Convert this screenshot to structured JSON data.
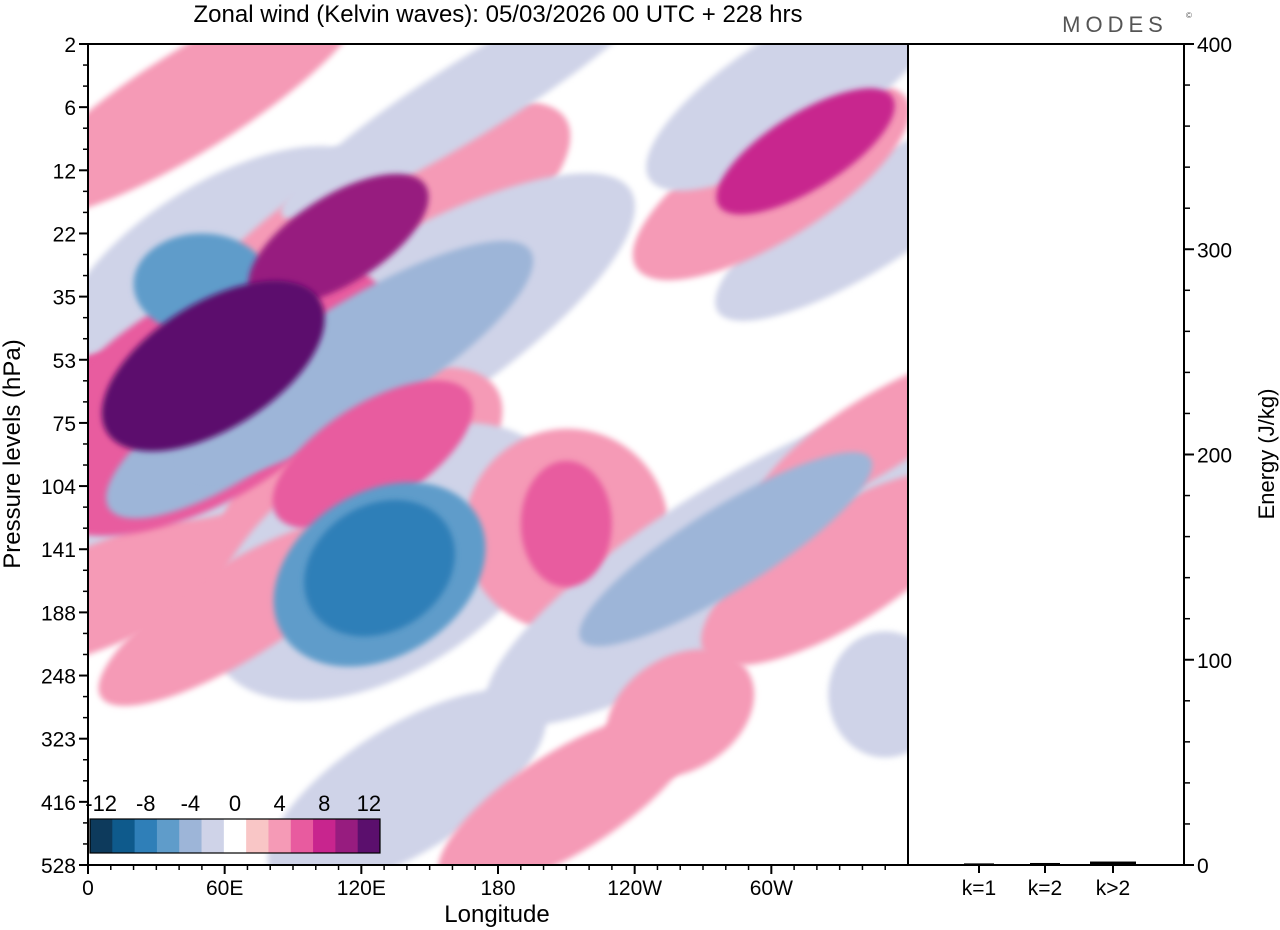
{
  "chart_data": [
    {
      "type": "heatmap",
      "title": "Zonal wind (Kelvin waves):  05/03/2026  00 UTC  + 228 hrs",
      "brand": "MODES",
      "brand_mark": "©",
      "xlabel": "Longitude",
      "ylabel": "Pressure levels (hPa)",
      "x_ticks": [
        {
          "lon": 0,
          "label": "0"
        },
        {
          "lon": 60,
          "label": "60E"
        },
        {
          "lon": 120,
          "label": "120E"
        },
        {
          "lon": 180,
          "label": "180"
        },
        {
          "lon": 240,
          "label": "120W"
        },
        {
          "lon": 300,
          "label": "60W"
        }
      ],
      "xlim": [
        0,
        360
      ],
      "y_levels": [
        "2",
        "6",
        "12",
        "22",
        "35",
        "53",
        "75",
        "104",
        "141",
        "188",
        "248",
        "323",
        "416",
        "528"
      ],
      "colorbar": {
        "labels": [
          "-12",
          "-8",
          "-4",
          "0",
          "4",
          "8",
          "12"
        ],
        "bins": [
          -14,
          -12,
          -10,
          -8,
          -6,
          -4,
          -2,
          2,
          4,
          6,
          8,
          10,
          12,
          14
        ],
        "colors": [
          "#0d3a5c",
          "#0e5a8c",
          "#2f7fb8",
          "#5f9cca",
          "#9db5d8",
          "#cfd3e8",
          "#ffffff",
          "#f9c6c6",
          "#f59ab6",
          "#e85b9f",
          "#c8258e",
          "#971c7f",
          "#5b0f6d"
        ]
      },
      "features": [
        {
          "v": -4,
          "lon": 12,
          "lev": 8,
          "len": 70,
          "thick": 1.5
        },
        {
          "v": 6,
          "lon": 8,
          "lev": 5.5,
          "len": 55,
          "thick": 1.2
        },
        {
          "v": 4,
          "lon": 5,
          "lev": 5.8,
          "len": 80,
          "thick": 1.6
        },
        {
          "v": -8,
          "lon": 50,
          "lev": 3.8,
          "len": 60,
          "thick": 1.6
        },
        {
          "v": -4,
          "lon": 58,
          "lev": 3.5,
          "len": 160,
          "thick": 2.6
        },
        {
          "v": 12,
          "lon": 55,
          "lev": 5.1,
          "len": 110,
          "thick": 2.0
        },
        {
          "v": 6,
          "lon": 52,
          "lev": 5.6,
          "len": 180,
          "thick": 3.2
        },
        {
          "v": 4,
          "lon": 38,
          "lev": 6.9,
          "len": 280,
          "thick": 3.8
        },
        {
          "v": -6,
          "lon": 60,
          "lev": 6.2,
          "len": 120,
          "thick": 1.5
        },
        {
          "v": -4,
          "lon": 75,
          "lev": 5.2,
          "len": 300,
          "thick": 2.5
        },
        {
          "v": 10,
          "lon": 110,
          "lev": 3.1,
          "len": 90,
          "thick": 1.4
        },
        {
          "v": 4,
          "lon": 125,
          "lev": 3.1,
          "len": 200,
          "thick": 2.5
        },
        {
          "v": -6,
          "lon": 118,
          "lev": 5.0,
          "len": 180,
          "thick": 1.8
        },
        {
          "v": -4,
          "lon": 128,
          "lev": 4.8,
          "len": 260,
          "thick": 2.8
        },
        {
          "v": 6,
          "lon": 125,
          "lev": 6.5,
          "len": 100,
          "thick": 1.6
        },
        {
          "v": 4,
          "lon": 120,
          "lev": 6.8,
          "len": 140,
          "thick": 2.4
        },
        {
          "v": -10,
          "lon": 128,
          "lev": 8.3,
          "len": 70,
          "thick": 2.0
        },
        {
          "v": -8,
          "lon": 128,
          "lev": 8.4,
          "len": 100,
          "thick": 2.6
        },
        {
          "v": -4,
          "lon": 130,
          "lev": 8.2,
          "len": 170,
          "thick": 3.5
        },
        {
          "v": 6,
          "lon": 210,
          "lev": 7.6,
          "len": 40,
          "thick": 2.0
        },
        {
          "v": 4,
          "lon": 210,
          "lev": 7.7,
          "len": 90,
          "thick": 3.2
        },
        {
          "v": -6,
          "lon": 280,
          "lev": 8.0,
          "len": 150,
          "thick": 1.3
        },
        {
          "v": -4,
          "lon": 282,
          "lev": 8.2,
          "len": 250,
          "thick": 2.4
        },
        {
          "v": -4,
          "lon": 140,
          "lev": 11.8,
          "len": 140,
          "thick": 2.0
        },
        {
          "v": 4,
          "lon": 210,
          "lev": 12.0,
          "len": 130,
          "thick": 1.6
        },
        {
          "v": 4,
          "lon": 260,
          "lev": 10.6,
          "len": 70,
          "thick": 1.8
        },
        {
          "v": 4,
          "lon": 330,
          "lev": 8.3,
          "len": 140,
          "thick": 1.8
        },
        {
          "v": 4,
          "lon": 345,
          "lev": 6.2,
          "len": 120,
          "thick": 1.2
        },
        {
          "v": -4,
          "lon": 340,
          "lev": 2.8,
          "len": 150,
          "thick": 1.6
        },
        {
          "v": 8,
          "lon": 315,
          "lev": 1.7,
          "len": 90,
          "thick": 1.2
        },
        {
          "v": 4,
          "lon": 300,
          "lev": 2.2,
          "len": 140,
          "thick": 1.8
        },
        {
          "v": -4,
          "lon": 310,
          "lev": 0.7,
          "len": 150,
          "thick": 1.8
        },
        {
          "v": 4,
          "lon": 45,
          "lev": 0.9,
          "len": 180,
          "thick": 1.6
        },
        {
          "v": -4,
          "lon": 170,
          "lev": 0.8,
          "len": 200,
          "thick": 1.2
        },
        {
          "v": -4,
          "lon": 350,
          "lev": 10.3,
          "len": 50,
          "thick": 2.0
        },
        {
          "v": 4,
          "lon": 65,
          "lev": 9.0,
          "len": 140,
          "thick": 1.5
        }
      ]
    },
    {
      "type": "bar",
      "ylabel": "Energy (J/kg)",
      "ylim": [
        0,
        400
      ],
      "y_ticks": [
        "0",
        "100",
        "200",
        "300",
        "400"
      ],
      "categories": [
        "k=1",
        "k=2",
        "k>2"
      ],
      "values": [
        0.3,
        0.5,
        1.2
      ]
    }
  ]
}
